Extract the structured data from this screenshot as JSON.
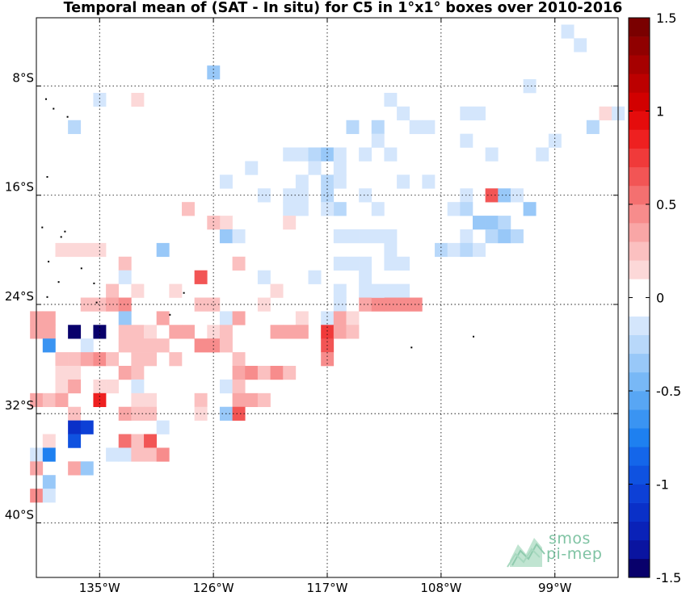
{
  "title": "Temporal mean of (SAT - In situ) for C5 in 1°x1° boxes over 2010-2016",
  "x_ticks": [
    "135°W",
    "126°W",
    "117°W",
    "108°W",
    "99°W"
  ],
  "y_ticks": [
    "8°S",
    "16°S",
    "24°S",
    "32°S",
    "40°S"
  ],
  "colorbar": {
    "tick_labels": [
      "1.5",
      "1",
      "0.5",
      "0",
      "-0.5",
      "-1",
      "-1.5"
    ],
    "colors": [
      "#08006b",
      "#0a14a0",
      "#0a22b8",
      "#0a30c8",
      "#0d40d6",
      "#0f52e0",
      "#1466ea",
      "#1e80f0",
      "#3a94f2",
      "#58a6f4",
      "#78b8f6",
      "#98c8f8",
      "#b8d8fa",
      "#d4e6fc",
      "#ffffff",
      "#ffffff",
      "#fcd8d8",
      "#fbc0c0",
      "#f9a6a6",
      "#f78c8c",
      "#f47070",
      "#f25555",
      "#f03a3a",
      "#ee2020",
      "#e50c0c",
      "#d20000",
      "#bc0000",
      "#a60000",
      "#900000",
      "#7a0000"
    ]
  },
  "logo": {
    "line1": "smos",
    "line2": "pi-mep"
  },
  "chart_data": {
    "type": "heatmap",
    "title": "Temporal mean of (SAT - In situ) for C5 in 1°x1° boxes over 2010-2016",
    "x_ticks": [
      "135°W",
      "126°W",
      "117°W",
      "108°W",
      "99°W"
    ],
    "y_ticks": [
      "8°S",
      "16°S",
      "24°S",
      "32°S",
      "40°S"
    ],
    "xlim": [
      -140,
      -94
    ],
    "ylim": [
      -44,
      -3
    ],
    "clim": [
      -1.5,
      1.5
    ],
    "colorbar_ticks": [
      1.5,
      1,
      0.5,
      0,
      -0.5,
      -1,
      -1.5
    ],
    "grid": true,
    "cells": [
      {
        "lon": -98,
        "lat": -4,
        "v": -0.15
      },
      {
        "lon": -97,
        "lat": -5,
        "v": -0.15
      },
      {
        "lon": -126,
        "lat": -7,
        "v": -0.4
      },
      {
        "lon": -101,
        "lat": -8,
        "v": -0.2
      },
      {
        "lon": -135,
        "lat": -9,
        "v": -0.15
      },
      {
        "lon": -132,
        "lat": -9,
        "v": 0.15
      },
      {
        "lon": -112,
        "lat": -9,
        "v": -0.15
      },
      {
        "lon": -111,
        "lat": -10,
        "v": -0.15
      },
      {
        "lon": -106,
        "lat": -10,
        "v": -0.15
      },
      {
        "lon": -105,
        "lat": -10,
        "v": -0.15
      },
      {
        "lon": -95,
        "lat": -10,
        "v": 0.15
      },
      {
        "lon": -94,
        "lat": -10,
        "v": -0.15
      },
      {
        "lon": -137,
        "lat": -11,
        "v": -0.25
      },
      {
        "lon": -115,
        "lat": -11,
        "v": -0.25
      },
      {
        "lon": -113,
        "lat": -11,
        "v": -0.25
      },
      {
        "lon": -110,
        "lat": -11,
        "v": -0.15
      },
      {
        "lon": -109,
        "lat": -11,
        "v": -0.15
      },
      {
        "lon": -96,
        "lat": -11,
        "v": -0.25
      },
      {
        "lon": -113,
        "lat": -12,
        "v": -0.2
      },
      {
        "lon": -106,
        "lat": -12,
        "v": -0.15
      },
      {
        "lon": -99,
        "lat": -12,
        "v": -0.15
      },
      {
        "lon": -120,
        "lat": -13,
        "v": -0.2
      },
      {
        "lon": -119,
        "lat": -13,
        "v": -0.2
      },
      {
        "lon": -118,
        "lat": -13,
        "v": -0.25
      },
      {
        "lon": -117,
        "lat": -13,
        "v": -0.3
      },
      {
        "lon": -116,
        "lat": -13,
        "v": -0.2
      },
      {
        "lon": -114,
        "lat": -13,
        "v": -0.2
      },
      {
        "lon": -112,
        "lat": -13,
        "v": -0.15
      },
      {
        "lon": -104,
        "lat": -13,
        "v": -0.15
      },
      {
        "lon": -100,
        "lat": -13,
        "v": -0.15
      },
      {
        "lon": -123,
        "lat": -14,
        "v": -0.15
      },
      {
        "lon": -118,
        "lat": -14,
        "v": -0.2
      },
      {
        "lon": -116,
        "lat": -14,
        "v": -0.15
      },
      {
        "lon": -125,
        "lat": -15,
        "v": -0.15
      },
      {
        "lon": -119,
        "lat": -15,
        "v": -0.2
      },
      {
        "lon": -117,
        "lat": -15,
        "v": -0.25
      },
      {
        "lon": -116,
        "lat": -15,
        "v": -0.15
      },
      {
        "lon": -111,
        "lat": -15,
        "v": -0.15
      },
      {
        "lon": -109,
        "lat": -15,
        "v": -0.15
      },
      {
        "lon": -106,
        "lat": -16,
        "v": -0.15
      },
      {
        "lon": -122,
        "lat": -16,
        "v": -0.15
      },
      {
        "lon": -120,
        "lat": -16,
        "v": -0.2
      },
      {
        "lon": -119,
        "lat": -16,
        "v": -0.15
      },
      {
        "lon": -117,
        "lat": -16,
        "v": -0.25
      },
      {
        "lon": -114,
        "lat": -16,
        "v": -0.15
      },
      {
        "lon": -104,
        "lat": -16,
        "v": 0.6
      },
      {
        "lon": -103,
        "lat": -16,
        "v": -0.4
      },
      {
        "lon": -102,
        "lat": -16,
        "v": -0.15
      },
      {
        "lon": -128,
        "lat": -17,
        "v": 0.2
      },
      {
        "lon": -116,
        "lat": -17,
        "v": -0.25
      },
      {
        "lon": -117,
        "lat": -17,
        "v": -0.2
      },
      {
        "lon": -120,
        "lat": -17,
        "v": -0.15
      },
      {
        "lon": -119,
        "lat": -17,
        "v": -0.15
      },
      {
        "lon": -113,
        "lat": -17,
        "v": -0.15
      },
      {
        "lon": -107,
        "lat": -17,
        "v": -0.15
      },
      {
        "lon": -106,
        "lat": -17,
        "v": -0.25
      },
      {
        "lon": -101,
        "lat": -17,
        "v": -0.4
      },
      {
        "lon": -105,
        "lat": -18,
        "v": -0.3
      },
      {
        "lon": -104,
        "lat": -18,
        "v": -0.3
      },
      {
        "lon": -103,
        "lat": -18,
        "v": -0.25
      },
      {
        "lon": -125,
        "lat": -18,
        "v": 0.15
      },
      {
        "lon": -126,
        "lat": -18,
        "v": 0.2
      },
      {
        "lon": -120,
        "lat": -18,
        "v": 0.15
      },
      {
        "lon": -125,
        "lat": -19,
        "v": -0.35
      },
      {
        "lon": -124,
        "lat": -19,
        "v": -0.2
      },
      {
        "lon": -116,
        "lat": -19,
        "v": -0.15
      },
      {
        "lon": -115,
        "lat": -19,
        "v": -0.15
      },
      {
        "lon": -114,
        "lat": -19,
        "v": -0.15
      },
      {
        "lon": -113,
        "lat": -19,
        "v": -0.15
      },
      {
        "lon": -112,
        "lat": -19,
        "v": -0.15
      },
      {
        "lon": -106,
        "lat": -19,
        "v": -0.15
      },
      {
        "lon": -104,
        "lat": -19,
        "v": -0.25
      },
      {
        "lon": -103,
        "lat": -19,
        "v": -0.3
      },
      {
        "lon": -102,
        "lat": -19,
        "v": -0.25
      },
      {
        "lon": -108,
        "lat": -20,
        "v": -0.25
      },
      {
        "lon": -107,
        "lat": -20,
        "v": -0.2
      },
      {
        "lon": -106,
        "lat": -20,
        "v": -0.25
      },
      {
        "lon": -105,
        "lat": -20,
        "v": -0.2
      },
      {
        "lon": -130,
        "lat": -20,
        "v": -0.35
      },
      {
        "lon": -138,
        "lat": -20,
        "v": 0.15
      },
      {
        "lon": -137,
        "lat": -20,
        "v": 0.15
      },
      {
        "lon": -136,
        "lat": -20,
        "v": 0.15
      },
      {
        "lon": -135,
        "lat": -20,
        "v": 0.15
      },
      {
        "lon": -112,
        "lat": -20,
        "v": -0.15
      },
      {
        "lon": -133,
        "lat": -21,
        "v": 0.2
      },
      {
        "lon": -124,
        "lat": -21,
        "v": 0.2
      },
      {
        "lon": -116,
        "lat": -21,
        "v": -0.15
      },
      {
        "lon": -115,
        "lat": -21,
        "v": -0.15
      },
      {
        "lon": -114,
        "lat": -21,
        "v": -0.15
      },
      {
        "lon": -112,
        "lat": -21,
        "v": -0.15
      },
      {
        "lon": -111,
        "lat": -21,
        "v": -0.15
      },
      {
        "lon": -133,
        "lat": -22,
        "v": -0.15
      },
      {
        "lon": -127,
        "lat": -22,
        "v": 0.6
      },
      {
        "lon": -122,
        "lat": -22,
        "v": -0.15
      },
      {
        "lon": -118,
        "lat": -22,
        "v": -0.15
      },
      {
        "lon": -114,
        "lat": -22,
        "v": -0.15
      },
      {
        "lon": -134,
        "lat": -23,
        "v": 0.2
      },
      {
        "lon": -132,
        "lat": -23,
        "v": 0.15
      },
      {
        "lon": -129,
        "lat": -23,
        "v": 0.15
      },
      {
        "lon": -121,
        "lat": -23,
        "v": 0.15
      },
      {
        "lon": -116,
        "lat": -23,
        "v": -0.15
      },
      {
        "lon": -114,
        "lat": -23,
        "v": -0.15
      },
      {
        "lon": -112,
        "lat": -23,
        "v": -0.15
      },
      {
        "lon": -111,
        "lat": -23,
        "v": -0.15
      },
      {
        "lon": -136,
        "lat": -24,
        "v": 0.2
      },
      {
        "lon": -135,
        "lat": -24,
        "v": 0.2
      },
      {
        "lon": -134,
        "lat": -24,
        "v": 0.3
      },
      {
        "lon": -133,
        "lat": -24,
        "v": 0.4
      },
      {
        "lon": -127,
        "lat": -24,
        "v": 0.2
      },
      {
        "lon": -126,
        "lat": -24,
        "v": 0.2
      },
      {
        "lon": -122,
        "lat": -24,
        "v": 0.15
      },
      {
        "lon": -116,
        "lat": -24,
        "v": -0.15
      },
      {
        "lon": -114,
        "lat": -24,
        "v": 0.35
      },
      {
        "lon": -113,
        "lat": -24,
        "v": 0.45
      },
      {
        "lon": -112,
        "lat": -24,
        "v": 0.45
      },
      {
        "lon": -111,
        "lat": -24,
        "v": 0.45
      },
      {
        "lon": -110,
        "lat": -24,
        "v": 0.45
      },
      {
        "lon": -113,
        "lat": -23,
        "v": -0.2
      },
      {
        "lon": -140,
        "lat": -25,
        "v": 0.3
      },
      {
        "lon": -139,
        "lat": -25,
        "v": 0.3
      },
      {
        "lon": -133,
        "lat": -25,
        "v": -0.3
      },
      {
        "lon": -130,
        "lat": -25,
        "v": 0.35
      },
      {
        "lon": -125,
        "lat": -25,
        "v": -0.15
      },
      {
        "lon": -124,
        "lat": -25,
        "v": 0.35
      },
      {
        "lon": -119,
        "lat": -25,
        "v": 0.15
      },
      {
        "lon": -117,
        "lat": -25,
        "v": -0.2
      },
      {
        "lon": -116,
        "lat": -25,
        "v": 0.3
      },
      {
        "lon": -115,
        "lat": -25,
        "v": 0.15
      },
      {
        "lon": -140,
        "lat": -26,
        "v": 0.35
      },
      {
        "lon": -139,
        "lat": -26,
        "v": 0.35
      },
      {
        "lon": -137,
        "lat": -26,
        "v": -1.6
      },
      {
        "lon": -135,
        "lat": -26,
        "v": -1.6
      },
      {
        "lon": -133,
        "lat": -26,
        "v": 0.2
      },
      {
        "lon": -132,
        "lat": -26,
        "v": 0.2
      },
      {
        "lon": -131,
        "lat": -26,
        "v": 0.15
      },
      {
        "lon": -129,
        "lat": -26,
        "v": 0.3
      },
      {
        "lon": -128,
        "lat": -26,
        "v": 0.3
      },
      {
        "lon": -126,
        "lat": -26,
        "v": 0.15
      },
      {
        "lon": -125,
        "lat": -26,
        "v": 0.2
      },
      {
        "lon": -121,
        "lat": -26,
        "v": 0.3
      },
      {
        "lon": -120,
        "lat": -26,
        "v": 0.35
      },
      {
        "lon": -119,
        "lat": -26,
        "v": 0.35
      },
      {
        "lon": -117,
        "lat": -26,
        "v": 0.7
      },
      {
        "lon": -116,
        "lat": -26,
        "v": 0.35
      },
      {
        "lon": -115,
        "lat": -26,
        "v": 0.2
      },
      {
        "lon": -139,
        "lat": -27,
        "v": -0.7
      },
      {
        "lon": -136,
        "lat": -27,
        "v": -0.15
      },
      {
        "lon": -133,
        "lat": -27,
        "v": 0.2
      },
      {
        "lon": -132,
        "lat": -27,
        "v": 0.2
      },
      {
        "lon": -131,
        "lat": -27,
        "v": 0.2
      },
      {
        "lon": -130,
        "lat": -27,
        "v": 0.2
      },
      {
        "lon": -127,
        "lat": -27,
        "v": 0.45
      },
      {
        "lon": -126,
        "lat": -27,
        "v": 0.45
      },
      {
        "lon": -125,
        "lat": -27,
        "v": 0.2
      },
      {
        "lon": -117,
        "lat": -27,
        "v": 0.6
      },
      {
        "lon": -138,
        "lat": -28,
        "v": 0.2
      },
      {
        "lon": -137,
        "lat": -28,
        "v": 0.2
      },
      {
        "lon": -136,
        "lat": -28,
        "v": 0.3
      },
      {
        "lon": -135,
        "lat": -28,
        "v": 0.4
      },
      {
        "lon": -134,
        "lat": -28,
        "v": 0.2
      },
      {
        "lon": -132,
        "lat": -28,
        "v": 0.2
      },
      {
        "lon": -131,
        "lat": -28,
        "v": 0.2
      },
      {
        "lon": -129,
        "lat": -28,
        "v": 0.2
      },
      {
        "lon": -124,
        "lat": -28,
        "v": 0.2
      },
      {
        "lon": -117,
        "lat": -28,
        "v": 0.4
      },
      {
        "lon": -138,
        "lat": -29,
        "v": 0.15
      },
      {
        "lon": -137,
        "lat": -29,
        "v": 0.15
      },
      {
        "lon": -133,
        "lat": -29,
        "v": 0.35
      },
      {
        "lon": -132,
        "lat": -29,
        "v": 0.2
      },
      {
        "lon": -124,
        "lat": -29,
        "v": 0.35
      },
      {
        "lon": -123,
        "lat": -29,
        "v": 0.4
      },
      {
        "lon": -122,
        "lat": -29,
        "v": 0.2
      },
      {
        "lon": -121,
        "lat": -29,
        "v": 0.45
      },
      {
        "lon": -120,
        "lat": -29,
        "v": 0.2
      },
      {
        "lon": -138,
        "lat": -30,
        "v": 0.15
      },
      {
        "lon": -137,
        "lat": -30,
        "v": 0.3
      },
      {
        "lon": -135,
        "lat": -30,
        "v": 0.15
      },
      {
        "lon": -134,
        "lat": -30,
        "v": 0.15
      },
      {
        "lon": -132,
        "lat": -30,
        "v": -0.2
      },
      {
        "lon": -125,
        "lat": -30,
        "v": -0.15
      },
      {
        "lon": -124,
        "lat": -30,
        "v": 0.2
      },
      {
        "lon": -140,
        "lat": -31,
        "v": 0.3
      },
      {
        "lon": -139,
        "lat": -31,
        "v": 0.2
      },
      {
        "lon": -138,
        "lat": -31,
        "v": 0.3
      },
      {
        "lon": -135,
        "lat": -31,
        "v": 0.8
      },
      {
        "lon": -132,
        "lat": -31,
        "v": 0.15
      },
      {
        "lon": -131,
        "lat": -31,
        "v": 0.15
      },
      {
        "lon": -127,
        "lat": -31,
        "v": 0.2
      },
      {
        "lon": -124,
        "lat": -31,
        "v": 0.35
      },
      {
        "lon": -123,
        "lat": -31,
        "v": 0.35
      },
      {
        "lon": -122,
        "lat": -31,
        "v": 0.2
      },
      {
        "lon": -137,
        "lat": -32,
        "v": 0.2
      },
      {
        "lon": -133,
        "lat": -32,
        "v": 0.3
      },
      {
        "lon": -132,
        "lat": -32,
        "v": 0.2
      },
      {
        "lon": -131,
        "lat": -32,
        "v": 0.2
      },
      {
        "lon": -127,
        "lat": -32,
        "v": 0.15
      },
      {
        "lon": -125,
        "lat": -32,
        "v": -0.3
      },
      {
        "lon": -124,
        "lat": -32,
        "v": 0.65
      },
      {
        "lon": -137,
        "lat": -33,
        "v": -1.1
      },
      {
        "lon": -136,
        "lat": -33,
        "v": -1.05
      },
      {
        "lon": -130,
        "lat": -33,
        "v": -0.15
      },
      {
        "lon": -139,
        "lat": -34,
        "v": 0.15
      },
      {
        "lon": -137,
        "lat": -34,
        "v": -0.9
      },
      {
        "lon": -133,
        "lat": -34,
        "v": 0.55
      },
      {
        "lon": -132,
        "lat": -34,
        "v": 0.25
      },
      {
        "lon": -131,
        "lat": -34,
        "v": 0.6
      },
      {
        "lon": -140,
        "lat": -35,
        "v": -0.2
      },
      {
        "lon": -139,
        "lat": -35,
        "v": -0.75
      },
      {
        "lon": -134,
        "lat": -35,
        "v": -0.15
      },
      {
        "lon": -133,
        "lat": -35,
        "v": -0.15
      },
      {
        "lon": -132,
        "lat": -35,
        "v": 0.2
      },
      {
        "lon": -131,
        "lat": -35,
        "v": 0.2
      },
      {
        "lon": -130,
        "lat": -35,
        "v": 0.45
      },
      {
        "lon": -140,
        "lat": -36,
        "v": 0.35
      },
      {
        "lon": -137,
        "lat": -36,
        "v": 0.35
      },
      {
        "lon": -136,
        "lat": -36,
        "v": -0.3
      },
      {
        "lon": -139,
        "lat": -37,
        "v": -0.3
      },
      {
        "lon": -140,
        "lat": -38,
        "v": 0.4
      },
      {
        "lon": -139,
        "lat": -38,
        "v": -0.2
      }
    ]
  }
}
